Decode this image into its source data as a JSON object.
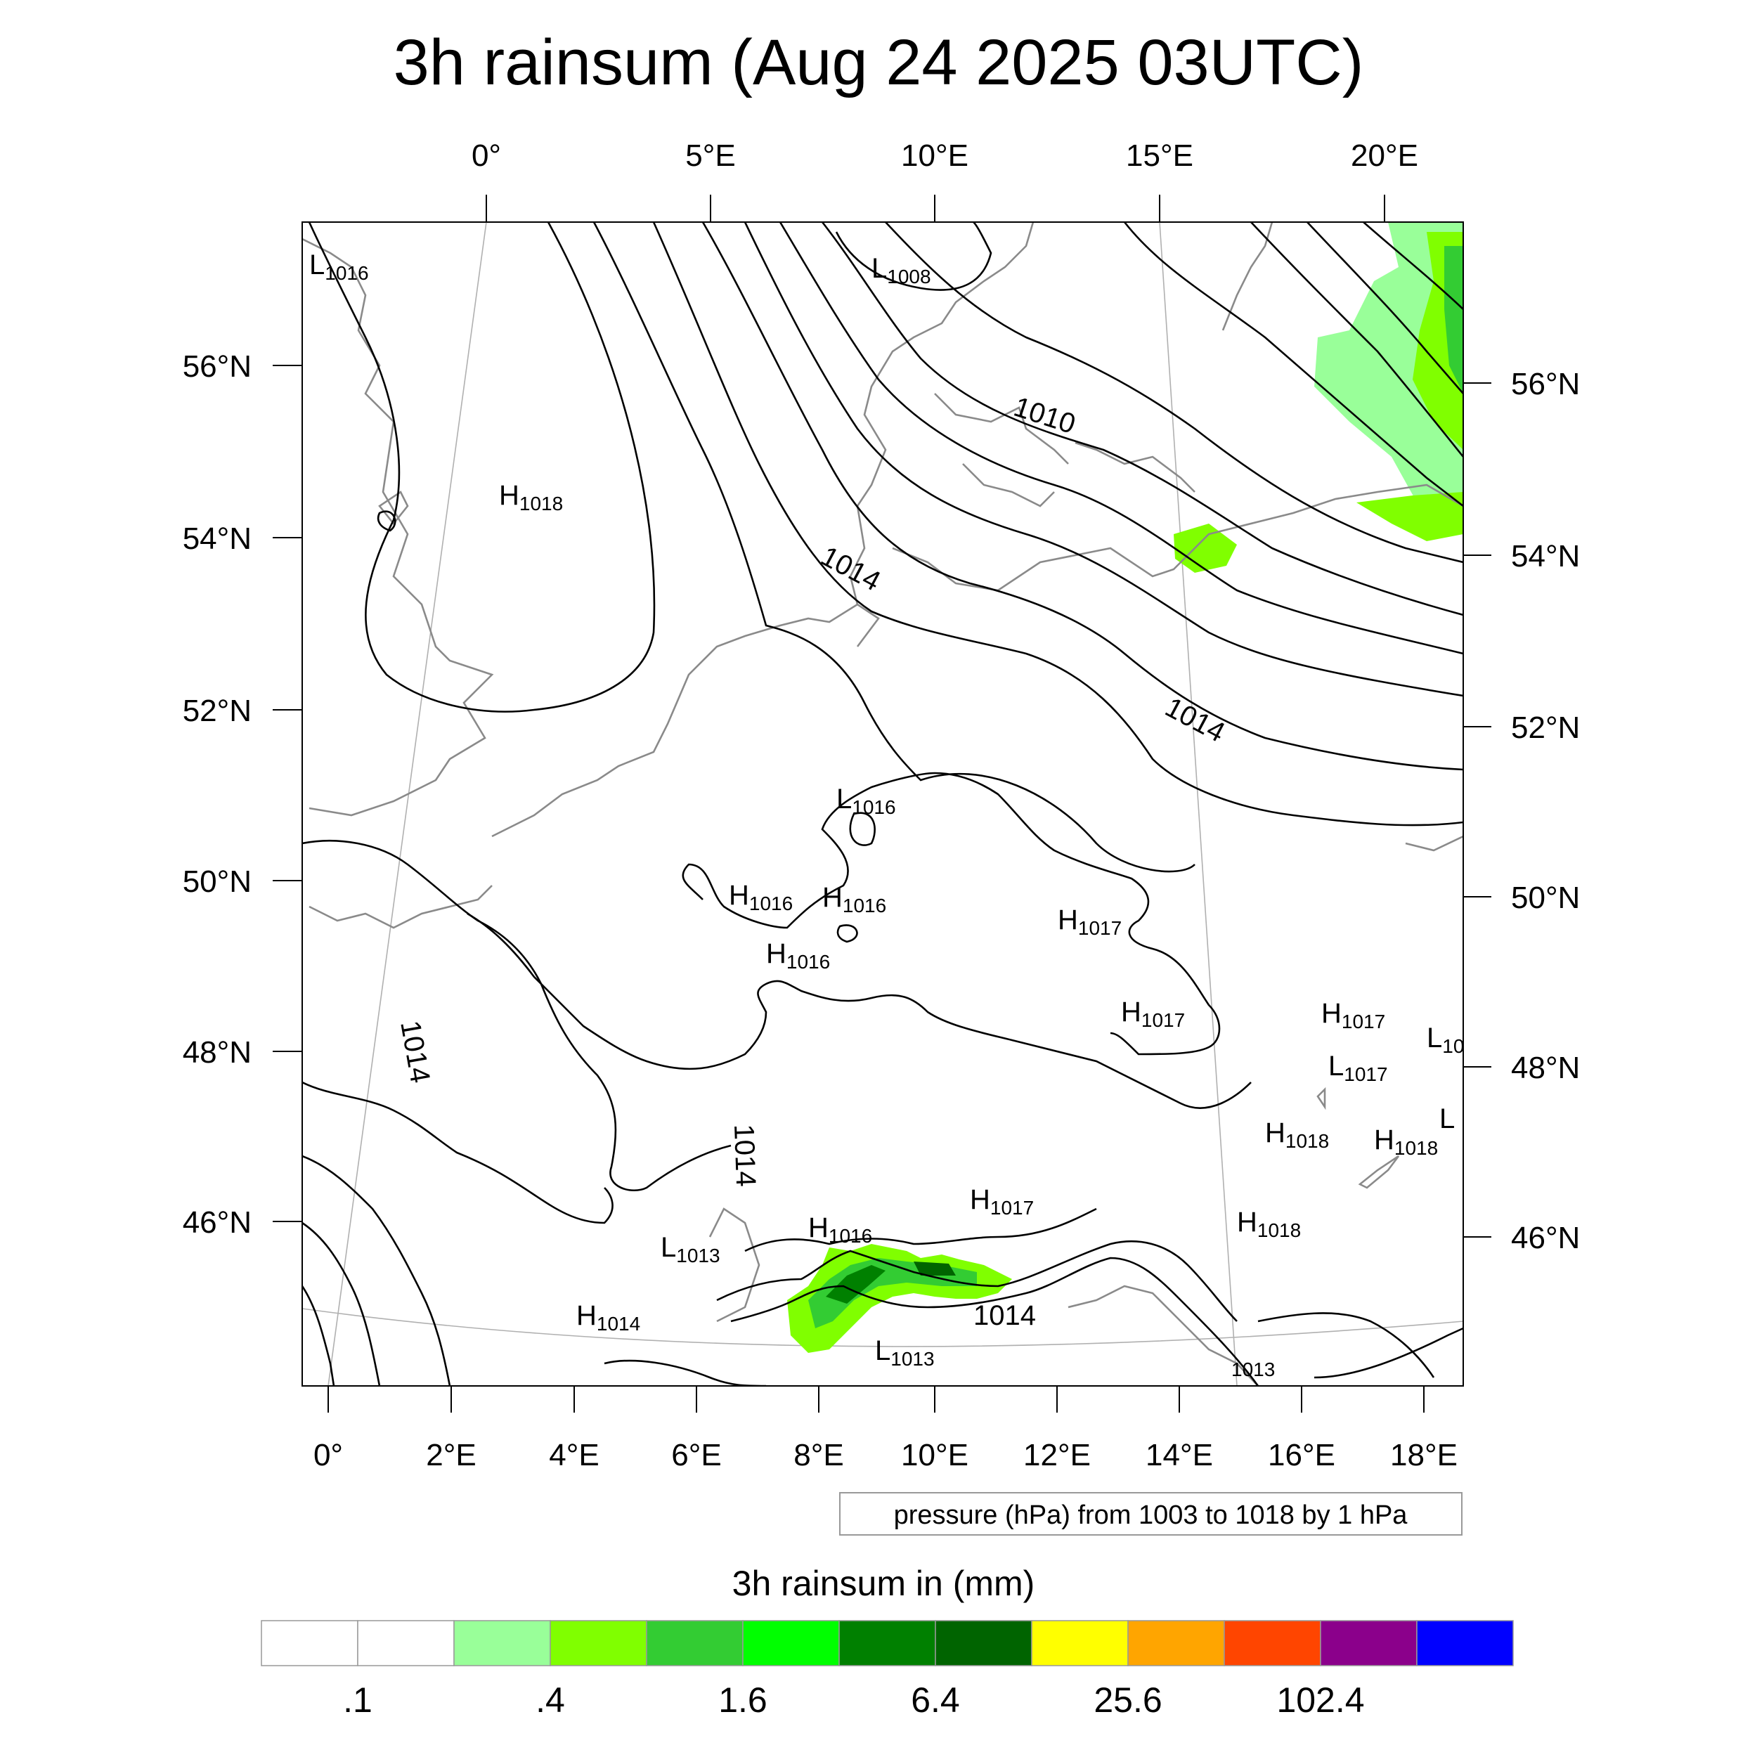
{
  "title": "3h rainsum (Aug 24 2025 03UTC)",
  "top_lon_labels": [
    "0°",
    "5°E",
    "10°E",
    "15°E",
    "20°E"
  ],
  "bottom_lon_labels": [
    "0°",
    "2°E",
    "4°E",
    "6°E",
    "8°E",
    "10°E",
    "12°E",
    "14°E",
    "16°E",
    "18°E"
  ],
  "left_lat_labels": [
    "56°N",
    "54°N",
    "52°N",
    "50°N",
    "48°N",
    "46°N"
  ],
  "right_lat_labels": [
    "56°N",
    "54°N",
    "52°N",
    "50°N",
    "48°N",
    "46°N"
  ],
  "pressure_centers": [
    {
      "kind": "L",
      "value": "1016"
    },
    {
      "kind": "L",
      "value": "1008"
    },
    {
      "kind": "H",
      "value": "1018"
    },
    {
      "kind": "L",
      "value": "1016"
    },
    {
      "kind": "H",
      "value": "1016"
    },
    {
      "kind": "H",
      "value": "1016"
    },
    {
      "kind": "H",
      "value": "1016"
    },
    {
      "kind": "H",
      "value": "1017"
    },
    {
      "kind": "H",
      "value": "1017"
    },
    {
      "kind": "H",
      "value": "1017"
    },
    {
      "kind": "L",
      "value": "10"
    },
    {
      "kind": "L",
      "value": "1017"
    },
    {
      "kind": "H",
      "value": "1018"
    },
    {
      "kind": "H",
      "value": "1018"
    },
    {
      "kind": "L",
      "value": ""
    },
    {
      "kind": "H",
      "value": "1017"
    },
    {
      "kind": "H",
      "value": "1016"
    },
    {
      "kind": "L",
      "value": "1013"
    },
    {
      "kind": "H",
      "value": "1018"
    },
    {
      "kind": "H",
      "value": "1014"
    },
    {
      "kind": "L",
      "value": "1013"
    }
  ],
  "contour_labels": [
    "1010",
    "1014",
    "1014",
    "1014",
    "1014",
    "1014",
    "1013"
  ],
  "contour_note": "pressure (hPa) from 1003 to 1018 by 1 hPa",
  "colorbar": {
    "title": "3h rainsum in (mm)",
    "colors": [
      "#ffffff",
      "#ffffff",
      "#99ff99",
      "#80ff00",
      "#33cc33",
      "#00ff00",
      "#008000",
      "#006400",
      "#ffff00",
      "#ffa500",
      "#ff4500",
      "#8b008b",
      "#0000ff"
    ],
    "labels": [
      ".1",
      ".4",
      "1.6",
      "6.4",
      "25.6",
      "102.4"
    ]
  },
  "colors": {
    "contour": "#000000",
    "coastline": "#8a8a8a",
    "graticule": "#b0b0b0",
    "rain_light": "#99ff99",
    "rain_medium": "#80ff00",
    "rain_strong": "#33cc33",
    "rain_heavy": "#008000"
  }
}
